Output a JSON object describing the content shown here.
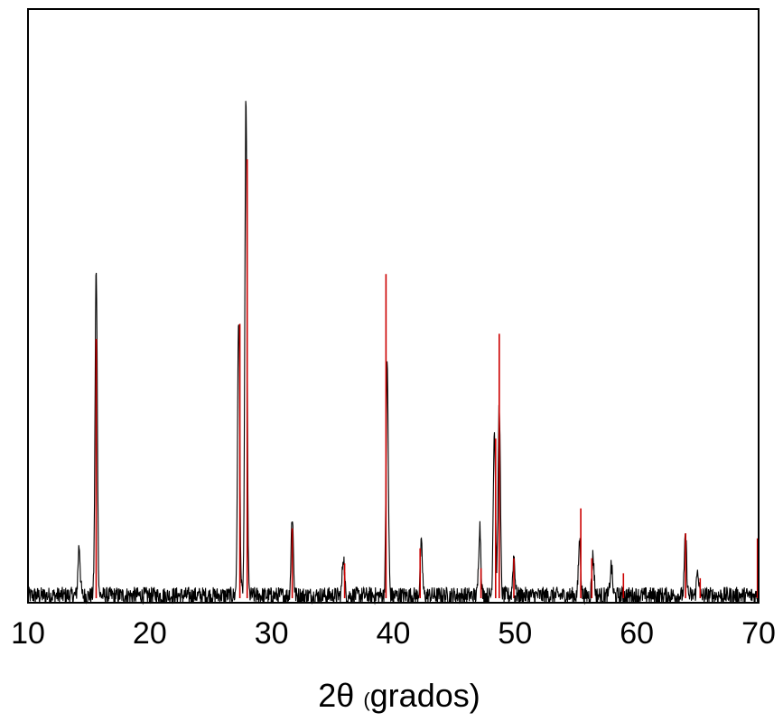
{
  "chart_data": {
    "type": "line",
    "title": "",
    "xlabel": "2θ (grados)",
    "xlabel_parts": {
      "main": "2θ ",
      "paren": "(",
      "rest": "grados)"
    },
    "ylabel": "",
    "xlim": [
      10,
      70
    ],
    "ylim": [
      0,
      1
    ],
    "x_ticks": [
      10,
      20,
      30,
      40,
      50,
      60,
      70
    ],
    "x_tick_labels": [
      "10",
      "20",
      "30",
      "40",
      "50",
      "60",
      "70"
    ],
    "y_ticks_shown": false,
    "grid": false,
    "legend": null,
    "series": [
      {
        "style": "noisy-profile",
        "color": "#000000",
        "noise_level": 0.035,
        "peaks": [
          {
            "x": 14.2,
            "y": 0.1
          },
          {
            "x": 15.6,
            "y": 0.65
          },
          {
            "x": 27.3,
            "y": 0.56
          },
          {
            "x": 27.9,
            "y": 1.0
          },
          {
            "x": 31.7,
            "y": 0.16
          },
          {
            "x": 35.9,
            "y": 0.08
          },
          {
            "x": 39.5,
            "y": 0.46
          },
          {
            "x": 42.3,
            "y": 0.1
          },
          {
            "x": 47.1,
            "y": 0.14
          },
          {
            "x": 48.3,
            "y": 0.33
          },
          {
            "x": 48.7,
            "y": 0.39
          },
          {
            "x": 49.9,
            "y": 0.08
          },
          {
            "x": 55.3,
            "y": 0.11
          },
          {
            "x": 56.4,
            "y": 0.08
          },
          {
            "x": 57.9,
            "y": 0.06
          },
          {
            "x": 64.0,
            "y": 0.12
          },
          {
            "x": 65.0,
            "y": 0.05
          }
        ]
      },
      {
        "style": "reference-sticks",
        "color": "#cc0000",
        "peaks": [
          {
            "x": 15.6,
            "y": 0.52
          },
          {
            "x": 27.4,
            "y": 0.55
          },
          {
            "x": 28.0,
            "y": 0.88
          },
          {
            "x": 31.7,
            "y": 0.14
          },
          {
            "x": 36.0,
            "y": 0.07
          },
          {
            "x": 39.4,
            "y": 0.65
          },
          {
            "x": 42.2,
            "y": 0.1
          },
          {
            "x": 47.2,
            "y": 0.06
          },
          {
            "x": 48.4,
            "y": 0.32
          },
          {
            "x": 48.7,
            "y": 0.53
          },
          {
            "x": 49.9,
            "y": 0.08
          },
          {
            "x": 55.4,
            "y": 0.18
          },
          {
            "x": 56.3,
            "y": 0.08
          },
          {
            "x": 58.9,
            "y": 0.05
          },
          {
            "x": 64.0,
            "y": 0.13
          },
          {
            "x": 65.2,
            "y": 0.04
          },
          {
            "x": 69.9,
            "y": 0.12
          }
        ]
      }
    ]
  }
}
